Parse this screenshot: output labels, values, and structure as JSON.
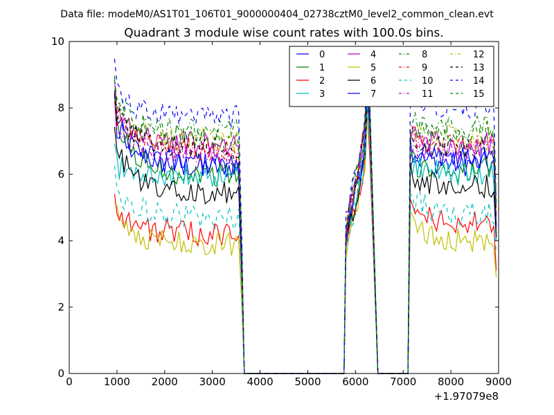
{
  "header": {
    "suptitle": "Data file: modeM0/AS1T01_106T01_9000000404_02738cztM0_level2_common_clean.evt"
  },
  "chart_data": {
    "type": "line",
    "title": "Quadrant 3 module wise count rates with 100.0s bins.",
    "xlabel": "",
    "ylabel": "",
    "x_offset_label": "+1.97079e8",
    "xlim": [
      0,
      9000
    ],
    "ylim": [
      0,
      10
    ],
    "xticks": [
      0,
      1000,
      2000,
      3000,
      4000,
      5000,
      6000,
      7000,
      8000,
      9000
    ],
    "yticks": [
      0,
      2,
      4,
      6,
      8,
      10
    ],
    "grid": false,
    "legend_position": "top-right",
    "legend_columns": 4,
    "segments": [
      [
        950,
        3550
      ],
      [
        3550,
        3670
      ],
      [
        3670,
        5760
      ],
      [
        5760,
        6300
      ],
      [
        6300,
        6470
      ],
      [
        6470,
        7100
      ],
      [
        7100,
        8950
      ]
    ],
    "series": [
      {
        "name": "0",
        "color": "#0000ff",
        "style": "solid",
        "levels": [
          7.8,
          6.2,
          7.5,
          6.3,
          4.1
        ]
      },
      {
        "name": "1",
        "color": "#008000",
        "style": "solid",
        "levels": [
          7.6,
          6.0,
          7.3,
          6.1,
          4.2
        ]
      },
      {
        "name": "2",
        "color": "#ff0000",
        "style": "solid",
        "levels": [
          5.0,
          4.2,
          6.8,
          4.5,
          3.1
        ]
      },
      {
        "name": "3",
        "color": "#00bfbf",
        "style": "solid",
        "levels": [
          6.3,
          5.9,
          7.4,
          6.0,
          4.0
        ]
      },
      {
        "name": "4",
        "color": "#bf00bf",
        "style": "solid",
        "levels": [
          8.0,
          6.9,
          8.0,
          6.9,
          4.8
        ]
      },
      {
        "name": "5",
        "color": "#bfbf00",
        "style": "solid",
        "levels": [
          4.8,
          3.9,
          6.8,
          4.0,
          2.9
        ]
      },
      {
        "name": "6",
        "color": "#000000",
        "style": "solid",
        "levels": [
          6.9,
          5.4,
          7.2,
          5.6,
          4.1
        ]
      },
      {
        "name": "7",
        "color": "#0000ff",
        "style": "solid",
        "levels": [
          7.6,
          6.3,
          7.4,
          6.5,
          4.4
        ]
      },
      {
        "name": "8",
        "color": "#008000",
        "style": "dashdot",
        "levels": [
          8.0,
          7.3,
          8.2,
          7.4,
          5.2
        ]
      },
      {
        "name": "9",
        "color": "#ff0000",
        "style": "dashdot",
        "levels": [
          7.8,
          6.7,
          8.0,
          6.9,
          4.9
        ]
      },
      {
        "name": "10",
        "color": "#00bfbf",
        "style": "dashed",
        "levels": [
          5.6,
          4.7,
          7.0,
          4.8,
          3.6
        ]
      },
      {
        "name": "11",
        "color": "#bf00bf",
        "style": "dashdot",
        "levels": [
          7.6,
          6.6,
          7.8,
          6.7,
          4.6
        ]
      },
      {
        "name": "12",
        "color": "#bfbf00",
        "style": "dashdot",
        "levels": [
          7.9,
          7.0,
          8.0,
          7.1,
          4.9
        ]
      },
      {
        "name": "13",
        "color": "#000000",
        "style": "dashed",
        "levels": [
          7.9,
          6.8,
          8.0,
          6.8,
          4.4
        ]
      },
      {
        "name": "14",
        "color": "#0000ff",
        "style": "dashed",
        "levels": [
          8.7,
          7.7,
          8.3,
          8.0,
          5.1
        ]
      },
      {
        "name": "15",
        "color": "#008000",
        "style": "dashed",
        "levels": [
          8.6,
          7.1,
          8.1,
          7.3,
          5.0
        ]
      }
    ]
  }
}
